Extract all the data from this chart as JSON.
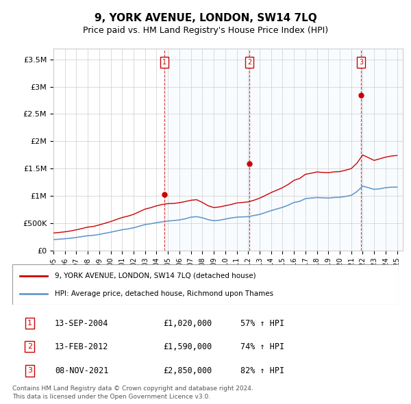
{
  "title": "9, YORK AVENUE, LONDON, SW14 7LQ",
  "subtitle": "Price paid vs. HM Land Registry's House Price Index (HPI)",
  "legend_line1": "9, YORK AVENUE, LONDON, SW14 7LQ (detached house)",
  "legend_line2": "HPI: Average price, detached house, Richmond upon Thames",
  "footer1": "Contains HM Land Registry data © Crown copyright and database right 2024.",
  "footer2": "This data is licensed under the Open Government Licence v3.0.",
  "transactions": [
    {
      "num": 1,
      "date": "13-SEP-2004",
      "price": "£1,020,000",
      "hpi": "57% ↑ HPI",
      "year": 2004.7
    },
    {
      "num": 2,
      "date": "13-FEB-2012",
      "price": "£1,590,000",
      "hpi": "74% ↑ HPI",
      "year": 2012.1
    },
    {
      "num": 3,
      "date": "08-NOV-2021",
      "price": "£2,850,000",
      "hpi": "82% ↑ HPI",
      "year": 2021.85
    }
  ],
  "ylim": [
    0,
    3700000
  ],
  "yticks": [
    0,
    500000,
    1000000,
    1500000,
    2000000,
    2500000,
    3000000,
    3500000
  ],
  "ytick_labels": [
    "£0",
    "£500K",
    "£1M",
    "£1.5M",
    "£2M",
    "£2.5M",
    "£3M",
    "£3.5M"
  ],
  "red_line_color": "#cc0000",
  "blue_line_color": "#6699cc",
  "vline_color": "#cc0000",
  "background_shading": "#ddeeff",
  "grid_color": "#cccccc",
  "sale_marker_color": "#cc0000",
  "hpi_data_x": [
    1995,
    1995.5,
    1996,
    1996.5,
    1997,
    1997.5,
    1998,
    1998.5,
    1999,
    1999.5,
    2000,
    2000.5,
    2001,
    2001.5,
    2002,
    2002.5,
    2003,
    2003.5,
    2004,
    2004.5,
    2005,
    2005.5,
    2006,
    2006.5,
    2007,
    2007.5,
    2008,
    2008.5,
    2009,
    2009.5,
    2010,
    2010.5,
    2011,
    2011.5,
    2012,
    2012.5,
    2013,
    2013.5,
    2014,
    2014.5,
    2015,
    2015.5,
    2016,
    2016.5,
    2017,
    2017.5,
    2018,
    2018.5,
    2019,
    2019.5,
    2020,
    2020.5,
    2021,
    2021.5,
    2022,
    2022.5,
    2023,
    2023.5,
    2024,
    2024.5,
    2025
  ],
  "hpi_data_y": [
    200000,
    207000,
    215000,
    225000,
    238000,
    255000,
    270000,
    278000,
    295000,
    315000,
    335000,
    358000,
    380000,
    395000,
    415000,
    445000,
    475000,
    490000,
    510000,
    525000,
    540000,
    548000,
    560000,
    580000,
    610000,
    620000,
    600000,
    565000,
    545000,
    555000,
    575000,
    595000,
    610000,
    615000,
    620000,
    640000,
    660000,
    695000,
    730000,
    760000,
    790000,
    830000,
    880000,
    900000,
    950000,
    960000,
    970000,
    965000,
    960000,
    970000,
    975000,
    990000,
    1010000,
    1080000,
    1180000,
    1150000,
    1120000,
    1130000,
    1150000,
    1160000,
    1160000
  ],
  "red_data_x": [
    1995,
    1995.5,
    1996,
    1996.5,
    1997,
    1997.5,
    1998,
    1998.5,
    1999,
    1999.5,
    2000,
    2000.5,
    2001,
    2001.5,
    2002,
    2002.5,
    2003,
    2003.5,
    2004,
    2004.5,
    2005,
    2005.5,
    2006,
    2006.5,
    2007,
    2007.5,
    2008,
    2008.5,
    2009,
    2009.5,
    2010,
    2010.5,
    2011,
    2011.5,
    2012,
    2012.5,
    2013,
    2013.5,
    2014,
    2014.5,
    2015,
    2015.5,
    2016,
    2016.5,
    2017,
    2017.5,
    2018,
    2018.5,
    2019,
    2019.5,
    2020,
    2020.5,
    2021,
    2021.5,
    2022,
    2022.5,
    2023,
    2023.5,
    2024,
    2024.5,
    2025
  ],
  "red_data_y": [
    320000,
    330000,
    342000,
    358000,
    378000,
    403000,
    428000,
    441000,
    468000,
    499000,
    530000,
    568000,
    604000,
    629000,
    662000,
    710000,
    758000,
    784000,
    818000,
    843000,
    858000,
    862000,
    875000,
    896000,
    920000,
    930000,
    880000,
    820000,
    786000,
    798000,
    820000,
    842000,
    870000,
    880000,
    890000,
    920000,
    958000,
    1008000,
    1060000,
    1105000,
    1150000,
    1210000,
    1285000,
    1320000,
    1395000,
    1415000,
    1438000,
    1430000,
    1425000,
    1440000,
    1445000,
    1470000,
    1500000,
    1600000,
    1750000,
    1700000,
    1650000,
    1680000,
    1710000,
    1730000,
    1740000
  ]
}
